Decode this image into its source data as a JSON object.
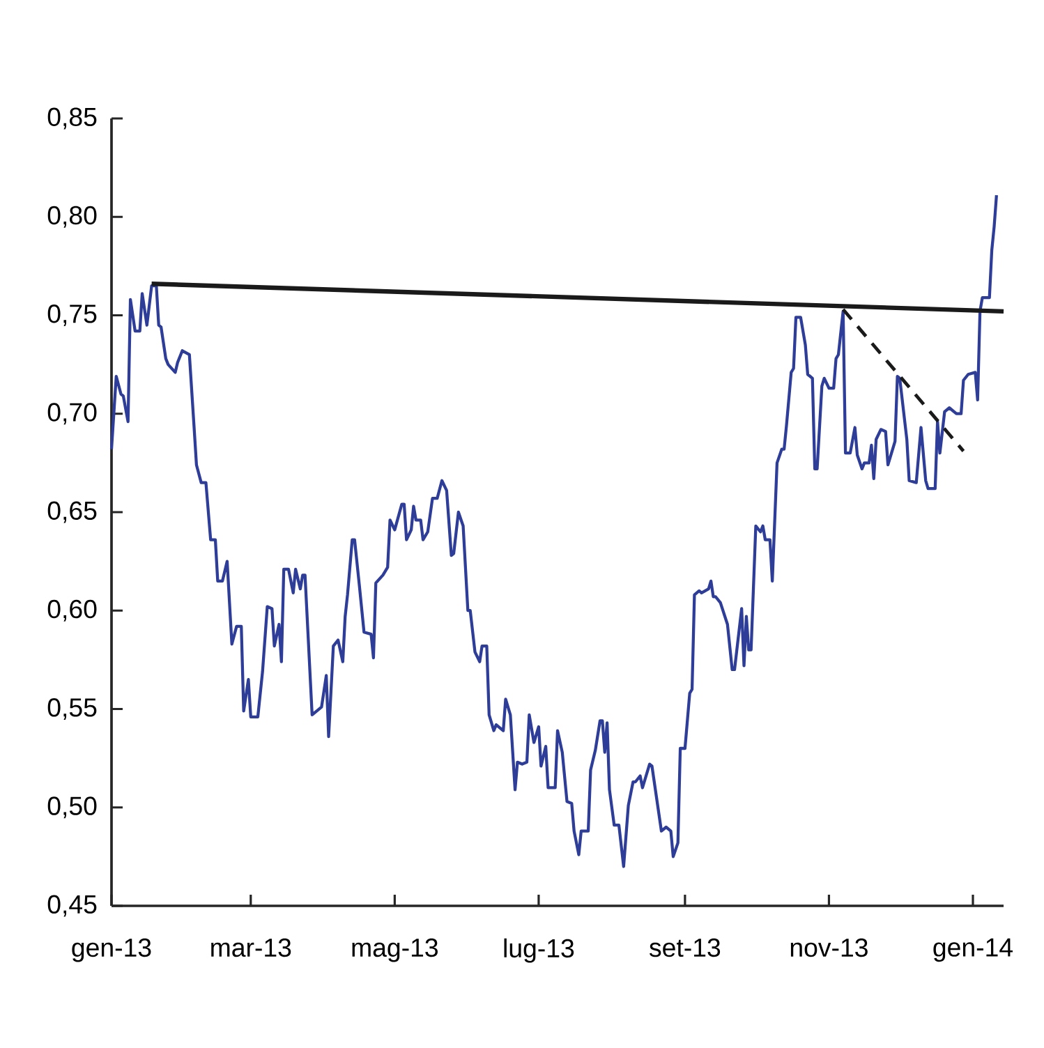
{
  "chart_data": {
    "type": "line",
    "xlim": [
      "2013-01-01",
      "2014-01-14"
    ],
    "ylim": [
      0.45,
      0.85
    ],
    "xticks": [
      {
        "value": "2013-01-01",
        "label": "gen-13"
      },
      {
        "value": "2013-03-01",
        "label": "mar-13"
      },
      {
        "value": "2013-05-01",
        "label": "mag-13"
      },
      {
        "value": "2013-07-01",
        "label": "lug-13"
      },
      {
        "value": "2013-09-01",
        "label": "set-13"
      },
      {
        "value": "2013-11-01",
        "label": "nov-13"
      },
      {
        "value": "2014-01-01",
        "label": "gen-14"
      }
    ],
    "yticks": [
      {
        "value": 0.45,
        "label": "0,45"
      },
      {
        "value": 0.5,
        "label": "0,50"
      },
      {
        "value": 0.55,
        "label": "0,55"
      },
      {
        "value": 0.6,
        "label": "0,60"
      },
      {
        "value": 0.65,
        "label": "0,65"
      },
      {
        "value": 0.7,
        "label": "0,70"
      },
      {
        "value": 0.75,
        "label": "0,75"
      },
      {
        "value": 0.8,
        "label": "0,80"
      },
      {
        "value": 0.85,
        "label": "0,85"
      }
    ],
    "grid": false,
    "marker": "none",
    "series": [
      {
        "color": "#2e3d98",
        "line_style": "solid",
        "x": [
          "2013-01-01",
          "2013-01-03",
          "2013-01-05",
          "2013-01-06",
          "2013-01-08",
          "2013-01-09",
          "2013-01-11",
          "2013-01-13",
          "2013-01-14",
          "2013-01-16",
          "2013-01-18",
          "2013-01-20",
          "2013-01-21",
          "2013-01-22",
          "2013-01-24",
          "2013-01-25",
          "2013-01-28",
          "2013-01-29",
          "2013-01-31",
          "2013-02-03",
          "2013-02-05",
          "2013-02-06",
          "2013-02-08",
          "2013-02-10",
          "2013-02-12",
          "2013-02-14",
          "2013-02-15",
          "2013-02-17",
          "2013-02-19",
          "2013-02-21",
          "2013-02-23",
          "2013-02-25",
          "2013-02-26",
          "2013-02-28",
          "2013-03-01",
          "2013-03-04",
          "2013-03-06",
          "2013-03-08",
          "2013-03-10",
          "2013-03-11",
          "2013-03-13",
          "2013-03-14",
          "2013-03-15",
          "2013-03-17",
          "2013-03-19",
          "2013-03-20",
          "2013-03-22",
          "2013-03-23",
          "2013-03-24",
          "2013-03-27",
          "2013-03-31",
          "2013-04-02",
          "2013-04-03",
          "2013-04-05",
          "2013-04-07",
          "2013-04-09",
          "2013-04-10",
          "2013-04-11",
          "2013-04-13",
          "2013-04-14",
          "2013-04-16",
          "2013-04-18",
          "2013-04-21",
          "2013-04-22",
          "2013-04-23",
          "2013-04-26",
          "2013-04-28",
          "2013-04-29",
          "2013-05-01",
          "2013-05-04",
          "2013-05-05",
          "2013-05-06",
          "2013-05-08",
          "2013-05-09",
          "2013-05-10",
          "2013-05-12",
          "2013-05-13",
          "2013-05-15",
          "2013-05-17",
          "2013-05-19",
          "2013-05-21",
          "2013-05-23",
          "2013-05-25",
          "2013-05-26",
          "2013-05-28",
          "2013-05-30",
          "2013-06-01",
          "2013-06-02",
          "2013-06-04",
          "2013-06-06",
          "2013-06-07",
          "2013-06-09",
          "2013-06-10",
          "2013-06-12",
          "2013-06-13",
          "2013-06-16",
          "2013-06-17",
          "2013-06-19",
          "2013-06-21",
          "2013-06-22",
          "2013-06-24",
          "2013-06-26",
          "2013-06-27",
          "2013-06-29",
          "2013-07-01",
          "2013-07-02",
          "2013-07-04",
          "2013-07-05",
          "2013-07-08",
          "2013-07-09",
          "2013-07-11",
          "2013-07-13",
          "2013-07-15",
          "2013-07-16",
          "2013-07-18",
          "2013-07-19",
          "2013-07-22",
          "2013-07-23",
          "2013-07-25",
          "2013-07-27",
          "2013-07-28",
          "2013-07-29",
          "2013-07-30",
          "2013-07-31",
          "2013-08-02",
          "2013-08-04",
          "2013-08-06",
          "2013-08-08",
          "2013-08-10",
          "2013-08-11",
          "2013-08-13",
          "2013-08-14",
          "2013-08-17",
          "2013-08-18",
          "2013-08-22",
          "2013-08-24",
          "2013-08-26",
          "2013-08-27",
          "2013-08-29",
          "2013-08-30",
          "2013-09-01",
          "2013-09-03",
          "2013-09-04",
          "2013-09-05",
          "2013-09-07",
          "2013-09-08",
          "2013-09-11",
          "2013-09-12",
          "2013-09-13",
          "2013-09-14",
          "2013-09-16",
          "2013-09-19",
          "2013-09-21",
          "2013-09-22",
          "2013-09-25",
          "2013-09-26",
          "2013-09-27",
          "2013-09-28",
          "2013-09-29",
          "2013-10-01",
          "2013-10-03",
          "2013-10-04",
          "2013-10-05",
          "2013-10-07",
          "2013-10-08",
          "2013-10-10",
          "2013-10-12",
          "2013-10-13",
          "2013-10-14",
          "2013-10-16",
          "2013-10-17",
          "2013-10-18",
          "2013-10-20",
          "2013-10-22",
          "2013-10-23",
          "2013-10-25",
          "2013-10-26",
          "2013-10-27",
          "2013-10-29",
          "2013-10-30",
          "2013-11-01",
          "2013-11-03",
          "2013-11-04",
          "2013-11-05",
          "2013-11-07",
          "2013-11-08",
          "2013-11-10",
          "2013-11-12",
          "2013-11-13",
          "2013-11-15",
          "2013-11-16",
          "2013-11-18",
          "2013-11-19",
          "2013-11-20",
          "2013-11-21",
          "2013-11-23",
          "2013-11-25",
          "2013-11-26",
          "2013-11-29",
          "2013-11-30",
          "2013-12-01",
          "2013-12-04",
          "2013-12-05",
          "2013-12-08",
          "2013-12-10",
          "2013-12-12",
          "2013-12-13",
          "2013-12-16",
          "2013-12-17",
          "2013-12-18",
          "2013-12-20",
          "2013-12-22",
          "2013-12-25",
          "2013-12-27",
          "2013-12-28",
          "2013-12-30",
          "2014-01-02",
          "2014-01-03",
          "2014-01-04",
          "2014-01-05",
          "2014-01-08",
          "2014-01-09",
          "2014-01-10",
          "2014-01-11"
        ],
        "values": [
          0.682,
          0.719,
          0.71,
          0.709,
          0.696,
          0.758,
          0.742,
          0.742,
          0.761,
          0.745,
          0.765,
          0.765,
          0.745,
          0.744,
          0.728,
          0.725,
          0.721,
          0.726,
          0.732,
          0.73,
          0.693,
          0.674,
          0.665,
          0.665,
          0.636,
          0.636,
          0.615,
          0.615,
          0.625,
          0.583,
          0.592,
          0.592,
          0.549,
          0.565,
          0.546,
          0.546,
          0.569,
          0.602,
          0.601,
          0.582,
          0.593,
          0.574,
          0.621,
          0.621,
          0.609,
          0.621,
          0.611,
          0.618,
          0.618,
          0.547,
          0.551,
          0.567,
          0.536,
          0.582,
          0.585,
          0.574,
          0.597,
          0.608,
          0.636,
          0.636,
          0.613,
          0.589,
          0.588,
          0.576,
          0.614,
          0.618,
          0.622,
          0.646,
          0.641,
          0.654,
          0.654,
          0.636,
          0.641,
          0.653,
          0.646,
          0.646,
          0.636,
          0.64,
          0.657,
          0.657,
          0.666,
          0.661,
          0.628,
          0.629,
          0.65,
          0.643,
          0.6,
          0.6,
          0.579,
          0.574,
          0.582,
          0.582,
          0.547,
          0.539,
          0.542,
          0.539,
          0.555,
          0.547,
          0.509,
          0.523,
          0.522,
          0.523,
          0.547,
          0.533,
          0.541,
          0.521,
          0.531,
          0.51,
          0.51,
          0.539,
          0.528,
          0.503,
          0.502,
          0.488,
          0.476,
          0.488,
          0.488,
          0.519,
          0.529,
          0.544,
          0.544,
          0.528,
          0.543,
          0.509,
          0.491,
          0.491,
          0.47,
          0.501,
          0.513,
          0.513,
          0.516,
          0.51,
          0.522,
          0.521,
          0.488,
          0.49,
          0.488,
          0.475,
          0.482,
          0.53,
          0.53,
          0.558,
          0.56,
          0.608,
          0.61,
          0.609,
          0.611,
          0.615,
          0.607,
          0.607,
          0.604,
          0.593,
          0.57,
          0.57,
          0.601,
          0.572,
          0.597,
          0.58,
          0.58,
          0.643,
          0.64,
          0.643,
          0.636,
          0.636,
          0.615,
          0.675,
          0.682,
          0.682,
          0.694,
          0.721,
          0.723,
          0.749,
          0.749,
          0.735,
          0.72,
          0.718,
          0.672,
          0.672,
          0.714,
          0.718,
          0.713,
          0.713,
          0.728,
          0.73,
          0.752,
          0.68,
          0.68,
          0.693,
          0.679,
          0.672,
          0.675,
          0.675,
          0.684,
          0.667,
          0.687,
          0.692,
          0.691,
          0.674,
          0.686,
          0.719,
          0.718,
          0.687,
          0.666,
          0.665,
          0.693,
          0.666,
          0.662,
          0.662,
          0.696,
          0.68,
          0.701,
          0.703,
          0.7,
          0.7,
          0.717,
          0.72,
          0.721,
          0.707,
          0.752,
          0.759,
          0.759,
          0.783,
          0.795,
          0.811
        ]
      },
      {
        "color": "#1a1a1a",
        "line_style": "solid",
        "x": [
          "2013-01-18",
          "2014-01-14"
        ],
        "values": [
          0.766,
          0.752
        ]
      },
      {
        "color": "#1a1a1a",
        "line_style": "dashed",
        "x": [
          "2013-11-07",
          "2013-12-28"
        ],
        "values": [
          0.753,
          0.681
        ]
      }
    ]
  }
}
